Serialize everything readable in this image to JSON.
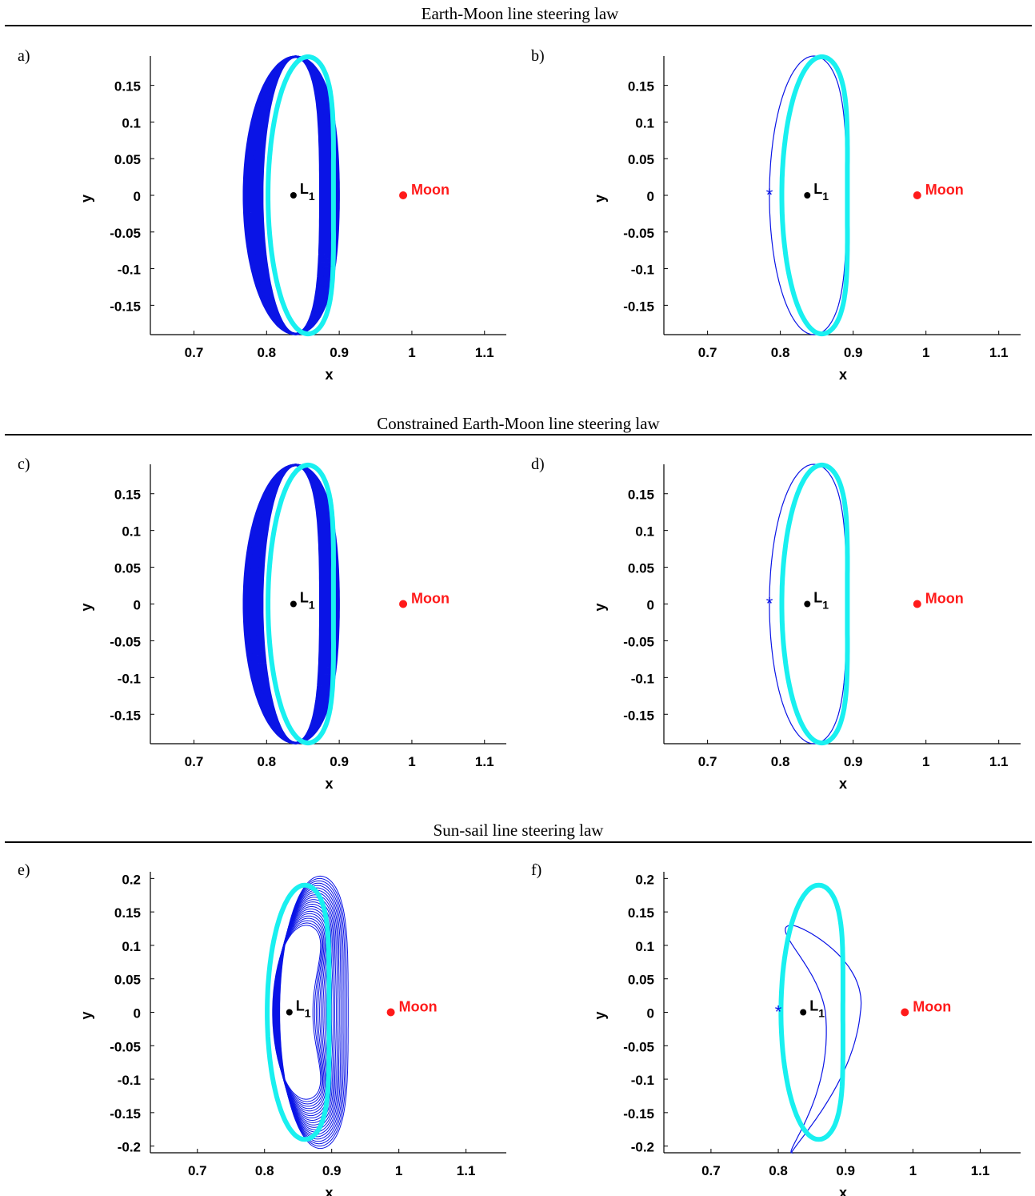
{
  "sections": [
    {
      "title": "Earth-Moon line steering law"
    },
    {
      "title": "Constrained Earth-Moon line steering law"
    },
    {
      "title": "Sun-sail line steering law"
    }
  ],
  "colors": {
    "dark_orbit": "#0a14e6",
    "light_orbit": "#19f0f0",
    "moon": "#ff1a1a",
    "l1": "#000000"
  },
  "chart_data": [
    {
      "panel": "a)",
      "type": "line",
      "xlabel": "x",
      "ylabel": "y",
      "xlim": [
        0.64,
        1.13
      ],
      "ylim": [
        -0.19,
        0.19
      ],
      "xticks": [
        "0.7",
        "0.8",
        "0.9",
        "1",
        "1.1"
      ],
      "yticks": [
        "0.15",
        "0.1",
        "0.05",
        "0",
        "-0.05",
        "-0.1",
        "-0.15"
      ],
      "yticks_vals": [
        0.15,
        0.1,
        0.05,
        0,
        -0.05,
        -0.1,
        -0.15
      ],
      "L1": {
        "label": "L",
        "sub": "1",
        "x": 0.837,
        "y": 0
      },
      "moon": {
        "label": "Moon",
        "x": 0.988,
        "y": 0
      },
      "style": "band"
    },
    {
      "panel": "b)",
      "type": "line",
      "xlabel": "x",
      "ylabel": "y",
      "xlim": [
        0.64,
        1.13
      ],
      "ylim": [
        -0.19,
        0.19
      ],
      "xticks": [
        "0.7",
        "0.8",
        "0.9",
        "1",
        "1.1"
      ],
      "yticks": [
        "0.15",
        "0.1",
        "0.05",
        "0",
        "-0.05",
        "-0.1",
        "-0.15"
      ],
      "yticks_vals": [
        0.15,
        0.1,
        0.05,
        0,
        -0.05,
        -0.1,
        -0.15
      ],
      "L1": {
        "label": "L",
        "sub": "1",
        "x": 0.837,
        "y": 0
      },
      "moon": {
        "label": "Moon",
        "x": 0.988,
        "y": 0
      },
      "start": {
        "x": 0.785,
        "y": 0
      },
      "style": "thin"
    },
    {
      "panel": "c)",
      "type": "line",
      "xlabel": "x",
      "ylabel": "y",
      "xlim": [
        0.64,
        1.13
      ],
      "ylim": [
        -0.19,
        0.19
      ],
      "xticks": [
        "0.7",
        "0.8",
        "0.9",
        "1",
        "1.1"
      ],
      "yticks": [
        "0.15",
        "0.1",
        "0.05",
        "0",
        "-0.05",
        "-0.1",
        "-0.15"
      ],
      "yticks_vals": [
        0.15,
        0.1,
        0.05,
        0,
        -0.05,
        -0.1,
        -0.15
      ],
      "L1": {
        "label": "L",
        "sub": "1",
        "x": 0.837,
        "y": 0
      },
      "moon": {
        "label": "Moon",
        "x": 0.988,
        "y": 0
      },
      "style": "band"
    },
    {
      "panel": "d)",
      "type": "line",
      "xlabel": "x",
      "ylabel": "y",
      "xlim": [
        0.64,
        1.13
      ],
      "ylim": [
        -0.19,
        0.19
      ],
      "xticks": [
        "0.7",
        "0.8",
        "0.9",
        "1",
        "1.1"
      ],
      "yticks": [
        "0.15",
        "0.1",
        "0.05",
        "0",
        "-0.05",
        "-0.1",
        "-0.15"
      ],
      "yticks_vals": [
        0.15,
        0.1,
        0.05,
        0,
        -0.05,
        -0.1,
        -0.15
      ],
      "L1": {
        "label": "L",
        "sub": "1",
        "x": 0.837,
        "y": 0
      },
      "moon": {
        "label": "Moon",
        "x": 0.988,
        "y": 0
      },
      "start": {
        "x": 0.785,
        "y": 0
      },
      "style": "thin"
    },
    {
      "panel": "e)",
      "type": "line",
      "xlabel": "x",
      "ylabel": "y",
      "xlim": [
        0.63,
        1.16
      ],
      "ylim": [
        -0.21,
        0.21
      ],
      "xticks": [
        "0.7",
        "0.8",
        "0.9",
        "1",
        "1.1"
      ],
      "yticks": [
        "0.2",
        "0.15",
        "0.1",
        "0.05",
        "0",
        "-0.05",
        "-0.1",
        "-0.15",
        "-0.2"
      ],
      "yticks_vals": [
        0.2,
        0.15,
        0.1,
        0.05,
        0,
        -0.05,
        -0.1,
        -0.15,
        -0.2
      ],
      "L1": {
        "label": "L",
        "sub": "1",
        "x": 0.837,
        "y": 0
      },
      "moon": {
        "label": "Moon",
        "x": 0.988,
        "y": 0
      },
      "style": "fan"
    },
    {
      "panel": "f)",
      "type": "line",
      "xlabel": "x",
      "ylabel": "y",
      "xlim": [
        0.63,
        1.16
      ],
      "ylim": [
        -0.21,
        0.21
      ],
      "xticks": [
        "0.7",
        "0.8",
        "0.9",
        "1",
        "1.1"
      ],
      "yticks": [
        "0.2",
        "0.15",
        "0.1",
        "0.05",
        "0",
        "-0.05",
        "-0.1",
        "-0.15",
        "-0.2"
      ],
      "yticks_vals": [
        0.2,
        0.15,
        0.1,
        0.05,
        0,
        -0.05,
        -0.1,
        -0.15,
        -0.2
      ],
      "L1": {
        "label": "L",
        "sub": "1",
        "x": 0.837,
        "y": 0
      },
      "moon": {
        "label": "Moon",
        "x": 0.988,
        "y": 0
      },
      "start": {
        "x": 0.8,
        "y": 0
      },
      "style": "eight"
    }
  ]
}
